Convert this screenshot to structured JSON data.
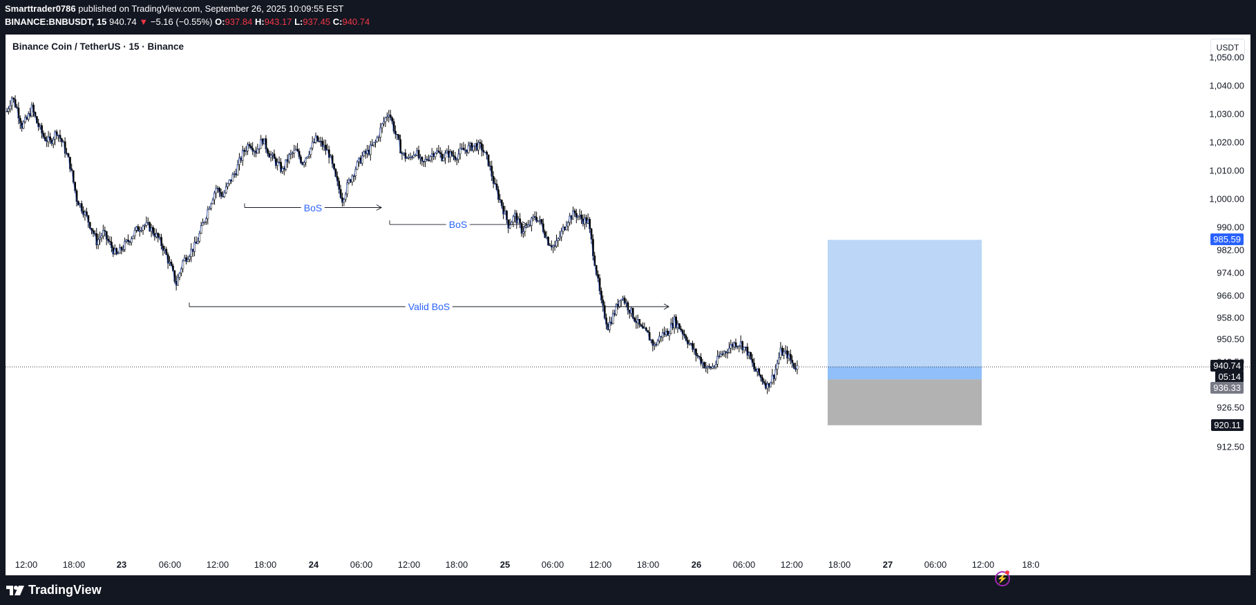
{
  "header": {
    "author": "Smarttrader0786",
    "published_text": "published on TradingView.com, September 26, 2025 10:09:55 EST",
    "symbol_interval": "BINANCE:BNBUSDT, 15",
    "last": "940.74",
    "change_arrow": "▼",
    "change": "−5.16 (−0.55%)",
    "o_label": "O:",
    "o_value": "937.84",
    "h_label": "H:",
    "h_value": "943.17",
    "l_label": "L:",
    "l_value": "937.45",
    "c_label": "C:",
    "c_value": "940.74"
  },
  "legend": {
    "title": "Binance Coin / TetherUS · 15 · Binance"
  },
  "currency_button": "USDT",
  "price_axis": {
    "labels": [
      "1,050.00",
      "1,040.00",
      "1,030.00",
      "1,020.00",
      "1,010.00",
      "1,000.00",
      "990.00",
      "982.00",
      "974.00",
      "966.00",
      "958.00",
      "950.50",
      "942.50",
      "926.50",
      "912.50"
    ],
    "tag_target": "985.59",
    "tag_last": "940.74",
    "tag_countdown": "05:14",
    "tag_entry": "936.33",
    "tag_stop": "920.11"
  },
  "time_axis": {
    "labels": [
      "12:00",
      "18:00",
      "23",
      "06:00",
      "12:00",
      "18:00",
      "24",
      "06:00",
      "12:00",
      "18:00",
      "25",
      "06:00",
      "12:00",
      "18:00",
      "26",
      "06:00",
      "12:00",
      "18:00",
      "27",
      "06:00",
      "12:00",
      "18:0"
    ],
    "day_labels": [
      "23",
      "24",
      "25",
      "26",
      "27"
    ]
  },
  "annotations": {
    "bos_1": "BoS",
    "bos_2": "BoS",
    "valid_bos": "Valid BoS"
  },
  "colors": {
    "up": "#ffffff",
    "down": "#000000",
    "wick": "#000000",
    "line": "#2962ff",
    "target_zone": "#bbd6f7",
    "stop_zone": "#b2b2b2",
    "profit_fill": "#90bff9"
  },
  "chart_data": {
    "type": "candlestick",
    "symbol": "BNBUSDT",
    "interval": "15",
    "x_labels": [
      "12:00",
      "18:00",
      "23",
      "06:00",
      "12:00",
      "18:00",
      "24",
      "06:00",
      "12:00",
      "18:00",
      "25",
      "06:00",
      "12:00",
      "18:00",
      "26",
      "06:00",
      "12:00",
      "18:00",
      "27",
      "06:00",
      "12:00",
      "18:0"
    ],
    "y_range": [
      908,
      1055
    ],
    "close_path": [
      [
        0,
        1031
      ],
      [
        3,
        1036
      ],
      [
        6,
        1032
      ],
      [
        9,
        1026
      ],
      [
        12,
        1028
      ],
      [
        15,
        1032
      ],
      [
        18,
        1027
      ],
      [
        22,
        1022
      ],
      [
        26,
        1020
      ],
      [
        30,
        1024
      ],
      [
        34,
        1019
      ],
      [
        38,
        1012
      ],
      [
        42,
        1000
      ],
      [
        46,
        996
      ],
      [
        50,
        991
      ],
      [
        54,
        985
      ],
      [
        58,
        988
      ],
      [
        62,
        984
      ],
      [
        66,
        980
      ],
      [
        70,
        983
      ],
      [
        74,
        986
      ],
      [
        78,
        989
      ],
      [
        82,
        991
      ],
      [
        86,
        990
      ],
      [
        90,
        987
      ],
      [
        94,
        983
      ],
      [
        98,
        977
      ],
      [
        102,
        970
      ],
      [
        106,
        978
      ],
      [
        110,
        981
      ],
      [
        114,
        984
      ],
      [
        118,
        991
      ],
      [
        122,
        998
      ],
      [
        126,
        1004
      ],
      [
        130,
        1001
      ],
      [
        134,
        1006
      ],
      [
        138,
        1010
      ],
      [
        142,
        1016
      ],
      [
        146,
        1020
      ],
      [
        150,
        1017
      ],
      [
        154,
        1021
      ],
      [
        158,
        1016
      ],
      [
        162,
        1013
      ],
      [
        166,
        1010
      ],
      [
        170,
        1015
      ],
      [
        174,
        1017
      ],
      [
        178,
        1013
      ],
      [
        182,
        1017
      ],
      [
        186,
        1021
      ],
      [
        190,
        1019
      ],
      [
        194,
        1016
      ],
      [
        198,
        1007
      ],
      [
        202,
        1000
      ],
      [
        206,
        1006
      ],
      [
        210,
        1011
      ],
      [
        214,
        1015
      ],
      [
        218,
        1017
      ],
      [
        222,
        1020
      ],
      [
        226,
        1026
      ],
      [
        230,
        1031
      ],
      [
        234,
        1023
      ],
      [
        238,
        1016
      ],
      [
        242,
        1014
      ],
      [
        246,
        1017
      ],
      [
        250,
        1012
      ],
      [
        254,
        1015
      ],
      [
        258,
        1017
      ],
      [
        262,
        1015
      ],
      [
        266,
        1016
      ],
      [
        270,
        1015
      ],
      [
        274,
        1017
      ],
      [
        278,
        1018
      ],
      [
        282,
        1019
      ],
      [
        286,
        1018
      ],
      [
        290,
        1013
      ],
      [
        294,
        1004
      ],
      [
        298,
        998
      ],
      [
        302,
        991
      ],
      [
        306,
        994
      ],
      [
        310,
        989
      ],
      [
        314,
        990
      ],
      [
        318,
        994
      ],
      [
        322,
        991
      ],
      [
        326,
        985
      ],
      [
        330,
        983
      ],
      [
        334,
        988
      ],
      [
        338,
        993
      ],
      [
        342,
        995
      ],
      [
        346,
        993
      ],
      [
        350,
        992
      ],
      [
        354,
        978
      ],
      [
        358,
        963
      ],
      [
        362,
        955
      ],
      [
        366,
        960
      ],
      [
        370,
        966
      ],
      [
        374,
        962
      ],
      [
        378,
        958
      ],
      [
        382,
        954
      ],
      [
        386,
        952
      ],
      [
        390,
        948
      ],
      [
        394,
        952
      ],
      [
        398,
        953
      ],
      [
        402,
        957
      ],
      [
        406,
        954
      ],
      [
        410,
        950
      ],
      [
        414,
        946
      ],
      [
        418,
        943
      ],
      [
        422,
        940
      ],
      [
        426,
        941
      ],
      [
        430,
        945
      ],
      [
        434,
        947
      ],
      [
        438,
        949
      ],
      [
        442,
        949
      ],
      [
        446,
        946
      ],
      [
        450,
        940
      ],
      [
        454,
        937
      ],
      [
        458,
        934
      ],
      [
        462,
        938
      ],
      [
        466,
        946
      ],
      [
        470,
        945
      ],
      [
        474,
        941
      ],
      [
        476,
        940.74
      ]
    ],
    "annotations": [
      {
        "label": "BoS",
        "level": 997
      },
      {
        "label": "BoS",
        "level": 991
      },
      {
        "label": "Valid BoS",
        "level": 962
      }
    ],
    "position": {
      "side": "long",
      "entry": 936.33,
      "target": 985.59,
      "stop": 920.11
    },
    "last_price": 940.74
  }
}
